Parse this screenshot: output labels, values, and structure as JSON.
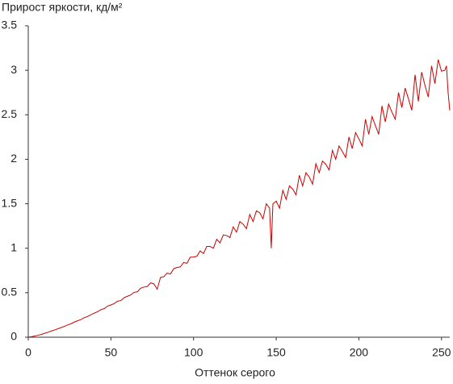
{
  "chart_data": {
    "type": "line",
    "y_label": "Прирост яркости, кд/м²",
    "x_label": "Оттенок серого",
    "color": "#cc0000",
    "xlim": [
      0,
      255
    ],
    "xticks": [
      0,
      50,
      100,
      150,
      200,
      250
    ],
    "ylim": [
      0,
      3.5
    ],
    "yticks": [
      0,
      0.5,
      1,
      1.5,
      2,
      2.5,
      3,
      3.5
    ],
    "x": [
      0,
      2,
      4,
      6,
      8,
      10,
      12,
      14,
      16,
      18,
      20,
      22,
      24,
      26,
      28,
      30,
      32,
      34,
      36,
      38,
      40,
      42,
      44,
      46,
      48,
      50,
      52,
      54,
      56,
      58,
      60,
      62,
      64,
      66,
      68,
      70,
      72,
      74,
      76,
      78,
      80,
      82,
      84,
      86,
      88,
      90,
      92,
      94,
      96,
      98,
      100,
      102,
      104,
      106,
      108,
      110,
      112,
      114,
      116,
      118,
      120,
      122,
      124,
      126,
      128,
      130,
      132,
      134,
      136,
      138,
      140,
      142,
      144,
      146,
      147,
      148,
      150,
      152,
      154,
      156,
      158,
      160,
      162,
      164,
      166,
      168,
      170,
      172,
      174,
      176,
      178,
      180,
      182,
      184,
      186,
      188,
      190,
      192,
      194,
      196,
      198,
      200,
      202,
      204,
      206,
      208,
      210,
      212,
      214,
      216,
      218,
      220,
      222,
      224,
      226,
      228,
      230,
      232,
      234,
      236,
      238,
      240,
      242,
      244,
      246,
      248,
      250,
      252,
      253,
      254,
      255
    ],
    "values": [
      0,
      0.006,
      0.014,
      0.022,
      0.032,
      0.044,
      0.056,
      0.069,
      0.082,
      0.095,
      0.109,
      0.123,
      0.139,
      0.153,
      0.171,
      0.186,
      0.2,
      0.22,
      0.234,
      0.253,
      0.271,
      0.287,
      0.31,
      0.322,
      0.35,
      0.363,
      0.378,
      0.405,
      0.412,
      0.445,
      0.46,
      0.475,
      0.505,
      0.51,
      0.55,
      0.564,
      0.57,
      0.61,
      0.6,
      0.54,
      0.672,
      0.68,
      0.72,
      0.71,
      0.77,
      0.784,
      0.79,
      0.84,
      0.83,
      0.9,
      0.901,
      0.91,
      0.97,
      0.94,
      1.02,
      1.02,
      1.0,
      1.1,
      1.06,
      1.15,
      1.143,
      1.12,
      1.24,
      1.18,
      1.3,
      1.27,
      1.22,
      1.38,
      1.3,
      1.42,
      1.4,
      1.33,
      1.5,
      1.45,
      1.0,
      1.5,
      1.53,
      1.45,
      1.65,
      1.55,
      1.7,
      1.665,
      1.6,
      1.82,
      1.7,
      1.85,
      1.8,
      1.72,
      1.95,
      1.85,
      1.98,
      1.944,
      1.88,
      2.1,
      2.0,
      2.15,
      2.088,
      2.02,
      2.25,
      2.12,
      2.3,
      2.23,
      2.15,
      2.45,
      2.28,
      2.48,
      2.38,
      2.28,
      2.6,
      2.42,
      2.62,
      2.53,
      2.45,
      2.75,
      2.58,
      2.8,
      2.68,
      2.55,
      2.95,
      2.65,
      2.98,
      2.83,
      2.7,
      3.05,
      2.85,
      3.12,
      2.99,
      3.0,
      3.05,
      2.75,
      2.55
    ]
  }
}
